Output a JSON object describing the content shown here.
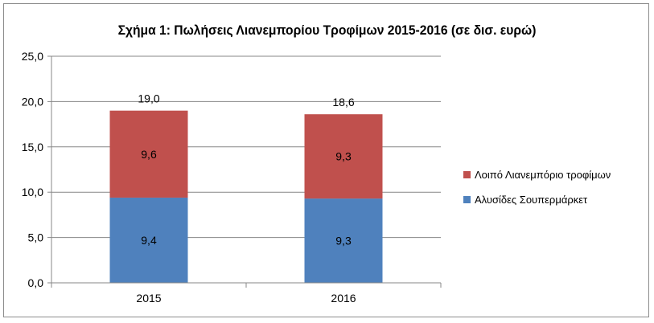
{
  "chart_data": {
    "type": "bar",
    "stacked": true,
    "title": "Σχήμα 1: Πωλήσεις Λιανεμπορίου Τροφίμων 2015-2016 (σε δισ. ευρώ)",
    "categories": [
      "2015",
      "2016"
    ],
    "series": [
      {
        "name": "Αλυσίδες Σουπερμάρκετ",
        "values": [
          9.4,
          9.3
        ],
        "labels": [
          "9,4",
          "9,3"
        ],
        "color": "#4f81bd"
      },
      {
        "name": "Λοιπό Λιανεμπόριο τροφίμων",
        "values": [
          9.6,
          9.3
        ],
        "labels": [
          "9,6",
          "9,3"
        ],
        "color": "#c0504d"
      }
    ],
    "totals": [
      19.0,
      18.6
    ],
    "total_labels": [
      "19,0",
      "18,6"
    ],
    "ylim": [
      0,
      25
    ],
    "yticks": [
      0,
      5,
      10,
      15,
      20,
      25
    ],
    "ytick_labels": [
      "0,0",
      "5,0",
      "10,0",
      "15,0",
      "20,0",
      "25,0"
    ],
    "grid": true,
    "legend_position": "right"
  }
}
